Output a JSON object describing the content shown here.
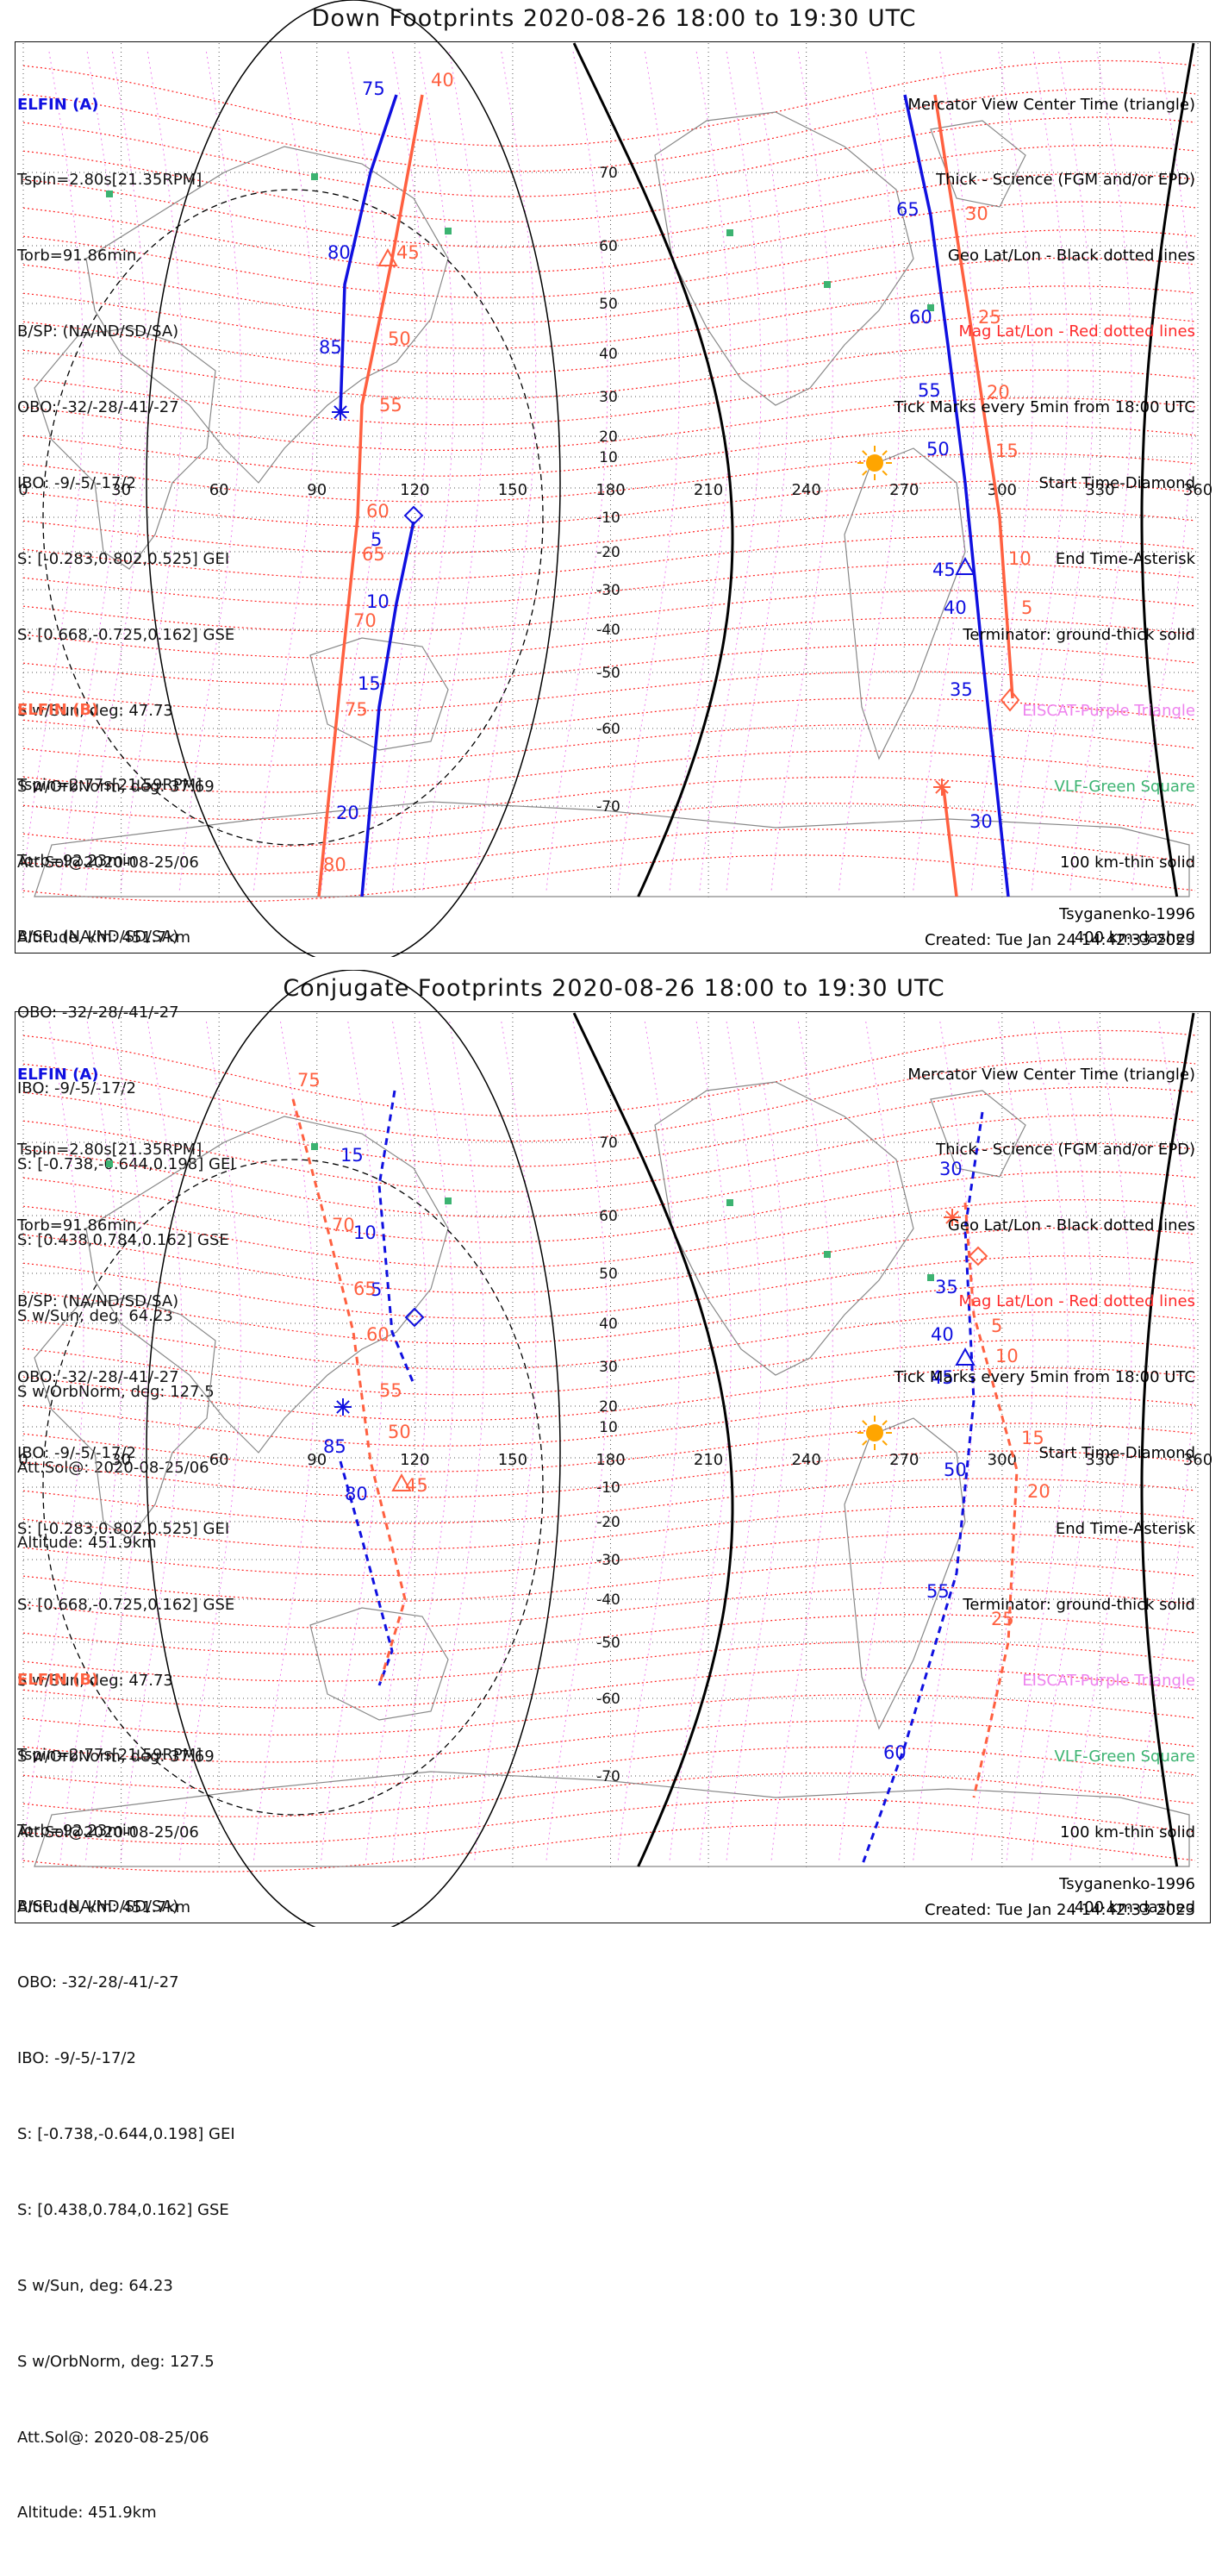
{
  "panels": [
    {
      "title": "Down Footprints 2020-08-26 18:00 to 19:30 UTC",
      "tracks": {
        "a": {
          "points": [
            [
              75,
              22
            ],
            [
              80,
              32
            ],
            [
              85,
              40
            ],
            [
              5,
              -10
            ],
            [
              10,
              -40
            ],
            [
              15,
              -80
            ],
            [
              20,
              -110
            ]
          ],
          "labels": [
            [
              "75",
              103,
              72
            ],
            [
              "80",
              101,
              61
            ],
            [
              "85",
              97,
              51
            ],
            [
              "5",
              117,
              -16
            ],
            [
              "10",
              110,
              -34
            ],
            [
              "15",
              107,
              -47
            ],
            [
              "20",
              103,
              -65
            ]
          ],
          "style": "solid"
        },
        "b": {
          "labels": [
            [
              "40",
              129,
              74
            ],
            [
              "45",
              112,
              61
            ],
            [
              "50",
              116,
              52
            ],
            [
              "55",
              111,
              41
            ],
            [
              "60",
              107,
              2
            ],
            [
              "65",
              106,
              -21
            ],
            [
              "70",
              102,
              -34
            ],
            [
              "75",
              98,
              -54
            ],
            [
              "80",
              94,
              -81
            ]
          ],
          "style": "solid"
        },
        "a2": {
          "labels": [
            [
              "65",
              278,
              64
            ],
            [
              "60",
              282,
              54
            ],
            [
              "55",
              284,
              33
            ],
            [
              "50",
              285,
              14
            ],
            [
              "45",
              283,
              -15
            ],
            [
              "40",
              285,
              -25
            ],
            [
              "35",
              288,
              -44
            ],
            [
              "30",
              290,
              -64
            ]
          ]
        },
        "b2": {
          "labels": [
            [
              "30",
              286,
              63
            ],
            [
              "25",
              293,
              46
            ],
            [
              "20",
              298,
              28
            ],
            [
              "15",
              302,
              14
            ],
            [
              "10",
              308,
              -20
            ],
            [
              "5",
              311,
              -28
            ]
          ]
        }
      }
    },
    {
      "title": "Conjugate Footprints 2020-08-26 18:00 to 19:30 UTC"
    }
  ],
  "info_a": {
    "header": "ELFIN (A)",
    "lines": [
      "Tspin=2.80s[21.35RPM]",
      "Torb=91.86min",
      "B/SP: (NA/ND/SD/SA)",
      "OBO: -32/-28/-41/-27",
      "IBO: -9/-5/-17/2",
      "S: [-0.283,0.802,0.525] GEI",
      "S: [0.668,-0.725,0.162] GSE",
      "S w/Sun, deg: 47.73",
      "S w/OrbNorm, deg: 37.69",
      "Att.Sol@2020-08-25/06",
      "Altitude, km: 451.7km"
    ]
  },
  "info_b": {
    "header": "ELFIN (B)",
    "lines": [
      "Tspin=2.77s[21.59RPM]",
      "Torb=92.23min",
      "B/SP: (NA/ND/SD/SA)",
      "OBO: -32/-28/-41/-27",
      "IBO: -9/-5/-17/2",
      "S: [-0.738,-0.644,0.198] GEI",
      "S: [0.438,0.784,0.162] GSE",
      "S w/Sun, deg: 64.23",
      "S w/OrbNorm, deg: 127.5",
      "Att.Sol@: 2020-08-25/06",
      "Altitude: 451.9km"
    ]
  },
  "legend": {
    "lines": [
      "Mercator View Center Time (triangle)",
      "Thick - Science (FGM and/or EPD)",
      "Geo Lat/Lon - Black dotted lines",
      "Mag Lat/Lon - Red dotted lines",
      "Tick Marks every 5min from 18:00 UTC",
      "Start Time-Diamond",
      "End Time-Asterisk",
      "Terminator: ground-thick solid",
      "EISCAT-Purple Triangle",
      "VLF-Green Square",
      "100 km-thin solid",
      "400 km-dashed"
    ],
    "colors": [
      "#111111",
      "#111111",
      "#111111",
      "#ff2a2a",
      "#111111",
      "#111111",
      "#111111",
      "#111111",
      "#ee82ee",
      "#3cb371",
      "#111111",
      "#111111"
    ]
  },
  "footer": {
    "model": "Tsyganenko-1996",
    "created": "Created: Tue Jan 24 14:42:33 2023"
  },
  "axes": {
    "lon_ticks": [
      "0",
      "30",
      "60",
      "90",
      "120",
      "150",
      "180",
      "210",
      "240",
      "270",
      "300",
      "330",
      "360"
    ],
    "lat_ticks": [
      "70",
      "60",
      "50",
      "40",
      "30",
      "20",
      "10",
      "-10",
      "-20",
      "-30",
      "-40",
      "-50",
      "-60",
      "-70"
    ]
  },
  "colors": {
    "elfin_a": "#1010e0",
    "elfin_b": "#ff6040",
    "mag_grid": "#ff2020",
    "eiscat": "#ee82ee",
    "vlf": "#3cb371",
    "sun": "#ffa500"
  }
}
